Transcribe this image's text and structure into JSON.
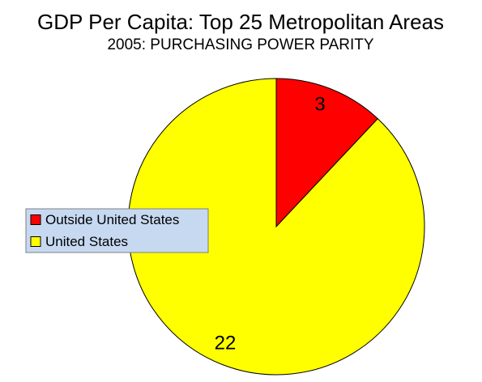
{
  "chart_data": {
    "type": "pie",
    "title": "GDP Per Capita: Top 25 Metropolitan Areas",
    "subtitle": "2005: PURCHASING POWER PARITY",
    "categories": [
      "Outside United States",
      "United States"
    ],
    "values": [
      3,
      22
    ],
    "colors": [
      "#ff0000",
      "#ffff00"
    ],
    "legend": "left"
  }
}
